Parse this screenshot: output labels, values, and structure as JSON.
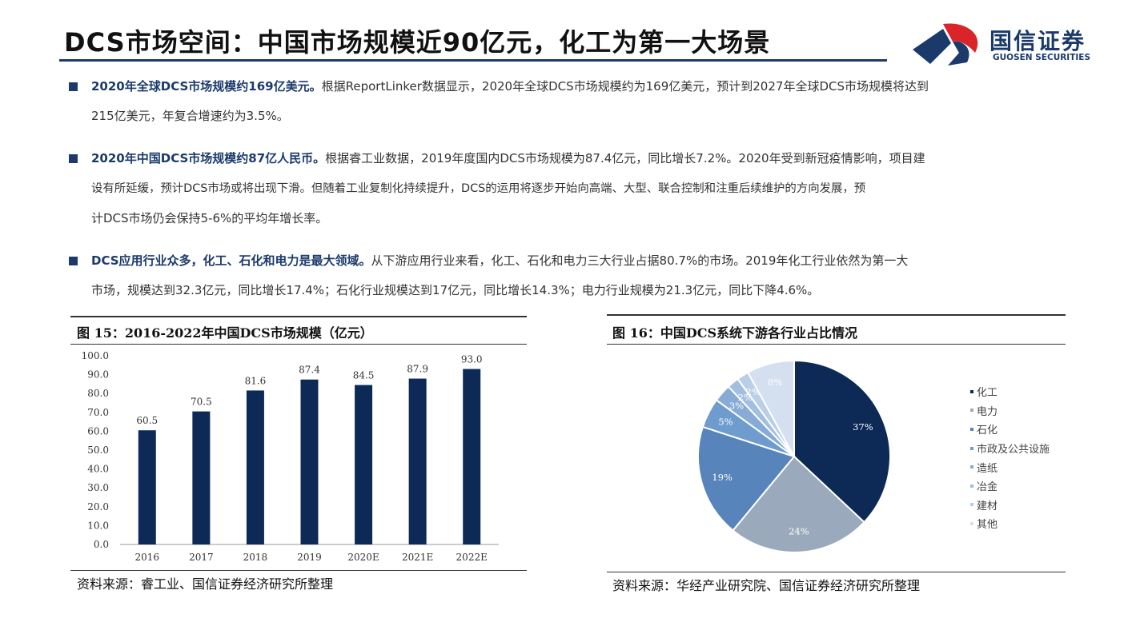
{
  "header": {
    "title": "DCS市场空间：中国市场规模近90亿元，化工为第一大场景",
    "logo_cn": "国信证券",
    "logo_en": "GUOSEN SECURITIES"
  },
  "paragraphs": [
    {
      "highlight": "2020年全球DCS市场规模约169亿美元。",
      "lines": [
        "根据ReportLinker数据显示，2020年全球DCS市场规模约为169亿美元，预计到2027年全球DCS市场规模将达到",
        "215亿美元，年复合增速约为3.5%。"
      ]
    },
    {
      "highlight": "2020年中国DCS市场规模约87亿人民币。",
      "lines": [
        "根据睿工业数据，2019年度国内DCS市场规模为87.4亿元，同比增长7.2%。2020年受到新冠疫情影响，项目建",
        "设有所延缓，预计DCS市场或将出现下滑。但随着工业复制化持续提升，DCS的运用将逐步开始向高端、大型、联合控制和注重后续维护的方向发展，预",
        "计DCS市场仍会保持5-6%的平均年增长率。"
      ]
    },
    {
      "highlight": "DCS应用行业众多，化工、石化和电力是最大领域。",
      "lines": [
        "从下游应用行业来看，化工、石化和电力三大行业占据80.7%的市场。2019年化工行业依然为第一大",
        "市场，规模达到32.3亿元，同比增长17.4%；石化行业规模达到17亿元，同比增长14.3%；电力行业规模为21.3亿元，同比下降4.6%。"
      ]
    }
  ],
  "figure15": {
    "title": "图 15：2016-2022年中国DCS市场规模（亿元）",
    "source": "资料来源：睿工业、国信证券经济研究所整理"
  },
  "figure16": {
    "title": "图 16：中国DCS系统下游各行业占比情况",
    "source": "资料来源：华经产业研究院、国信证券经济研究所整理"
  },
  "chart_data": [
    {
      "type": "bar",
      "categories": [
        "2016",
        "2017",
        "2018",
        "2019",
        "2020E",
        "2021E",
        "2022E"
      ],
      "values": [
        60.5,
        70.5,
        81.6,
        87.4,
        84.5,
        87.9,
        93.0
      ],
      "value_labels": [
        "60.5",
        "70.5",
        "81.6",
        "87.4",
        "84.5",
        "87.9",
        "93.0"
      ],
      "yticks": [
        "0.0",
        "10.0",
        "20.0",
        "30.0",
        "40.0",
        "50.0",
        "60.0",
        "70.0",
        "80.0",
        "90.0",
        "100.0"
      ],
      "ylim": [
        0,
        100
      ],
      "grid": false,
      "bar_color": "#0d2a57"
    },
    {
      "type": "pie",
      "labels": [
        "化工",
        "电力",
        "石化",
        "市政及公共设施",
        "造纸",
        "冶金",
        "建材",
        "其他"
      ],
      "values": [
        37,
        24,
        19,
        5,
        3,
        2,
        2,
        8
      ],
      "value_labels": [
        "37%",
        "24%",
        "19%",
        "5%",
        "3%",
        "2%",
        "2%",
        "8%"
      ],
      "colors": [
        "#0d2a57",
        "#9aa9bb",
        "#5684bb",
        "#6f9ccf",
        "#86abd6",
        "#a2bfe0",
        "#b9cfe8",
        "#d4e0f0"
      ],
      "legend_position": "right"
    }
  ]
}
